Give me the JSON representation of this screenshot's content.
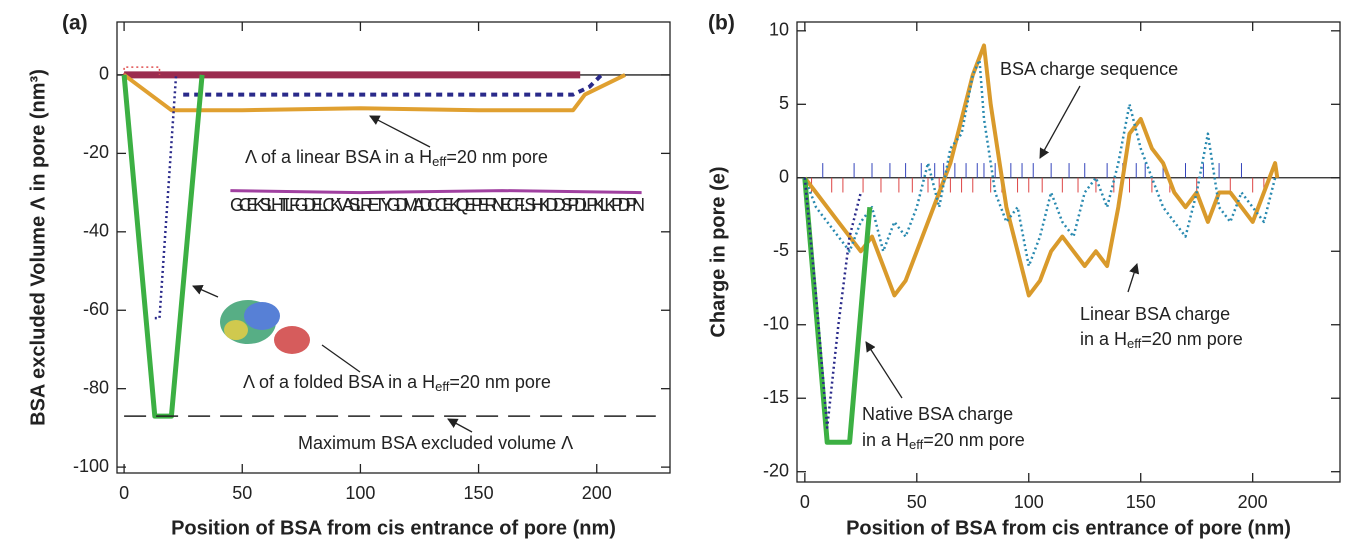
{
  "chart_data": [
    {
      "type": "line",
      "panel_label": "(a)",
      "xlabel": "Position of BSA from cis entrance of pore (nm)",
      "ylabel": "BSA excluded Volume Λ in pore (nm³)",
      "xlim": [
        -3,
        231
      ],
      "ylim": [
        -101.5,
        13.5
      ],
      "xticks": [
        0,
        50,
        100,
        150,
        200
      ],
      "yticks": [
        0,
        -20,
        -40,
        -60,
        -80,
        -100
      ],
      "series": [
        {
          "color": "#9b2c4f",
          "style": "solid",
          "width": 7,
          "x": [
            0,
            193
          ],
          "values": [
            0,
            0
          ]
        },
        {
          "color": "#e05050",
          "style": "dotted",
          "width": 1.5,
          "x": [
            0,
            0,
            15,
            15
          ],
          "values": [
            0,
            2,
            2,
            0
          ]
        },
        {
          "color": "#e0a030",
          "style": "solid",
          "width": 4,
          "x": [
            0,
            20,
            50,
            100,
            150,
            190,
            195,
            212
          ],
          "values": [
            0,
            -9,
            -9,
            -8.5,
            -9,
            -9,
            -5,
            0
          ]
        },
        {
          "color": "#2a2a8a",
          "style": "dotted",
          "width": 2.5,
          "x": [
            13,
            15,
            22
          ],
          "values": [
            -62,
            -62,
            0
          ]
        },
        {
          "color": "#2a2a8a",
          "style": "dashed",
          "width": 4,
          "x": [
            25,
            50,
            100,
            150,
            190,
            197,
            202
          ],
          "values": [
            -5,
            -5,
            -5,
            -5,
            -5,
            -3,
            0
          ]
        },
        {
          "color": "#3cb043",
          "style": "solid",
          "width": 5,
          "x": [
            0,
            13,
            20,
            33
          ],
          "values": [
            0,
            -87,
            -87,
            0
          ]
        },
        {
          "color": "#222222",
          "style": "longdash",
          "width": 1.5,
          "x": [
            0,
            225
          ],
          "values": [
            -87,
            -87
          ]
        },
        {
          "color": "#a040a0",
          "style": "solid",
          "width": 3,
          "x": [
            45,
            100,
            160,
            219
          ],
          "values": [
            -29.5,
            -30,
            -29.5,
            -30
          ]
        }
      ],
      "annotations": [
        {
          "parts": [
            "Λ of a linear BSA in a H",
            "eff",
            "=20 nm pore"
          ]
        },
        {
          "parts": [
            "Λ of a folded BSA in a H",
            "eff",
            "=20 nm pore"
          ]
        },
        {
          "parts": [
            "Maximum BSA excluded volume Λ"
          ]
        }
      ],
      "sequence_text": "GCEKSLHTLFGDELCKVASLRETYGDMADCCEKQEPERNECFLSHKDDSPDLPKLKPDPN"
    },
    {
      "type": "line",
      "panel_label": "(b)",
      "xlabel": "Position of BSA from cis entrance of pore (nm)",
      "ylabel": "Charge in pore (e)",
      "xlim": [
        -3.5,
        239
      ],
      "ylim": [
        -20.7,
        10.6
      ],
      "xticks": [
        0,
        50,
        100,
        150,
        200
      ],
      "yticks": [
        10,
        5,
        0,
        -5,
        -10,
        -15,
        -20
      ],
      "series": [
        {
          "color": "#3344bb",
          "style": "stem",
          "width": 1,
          "x": [
            8,
            22,
            30,
            38,
            45,
            52,
            58,
            62,
            67,
            72,
            77,
            80,
            85,
            92,
            97,
            102,
            110,
            118,
            125,
            135,
            142,
            148,
            152,
            160,
            170,
            178,
            185,
            195
          ],
          "values": [
            1,
            1,
            1,
            1,
            1,
            1,
            1,
            1,
            1,
            1,
            1,
            1,
            1,
            1,
            1,
            1,
            1,
            1,
            1,
            1,
            1,
            1,
            1,
            1,
            1,
            1,
            1,
            1
          ]
        },
        {
          "color": "#dd4444",
          "style": "stem",
          "width": 1,
          "x": [
            3,
            12,
            17,
            26,
            34,
            42,
            48,
            55,
            60,
            65,
            70,
            75,
            83,
            88,
            95,
            100,
            106,
            115,
            122,
            130,
            138,
            145,
            155,
            163,
            175,
            190,
            200,
            205
          ],
          "values": [
            -1,
            -1,
            -1,
            -1,
            -1,
            -1,
            -1,
            -1,
            -1,
            -1,
            -1,
            -1,
            -1,
            -1,
            -1,
            -1,
            -1,
            -1,
            -1,
            -1,
            -1,
            -1,
            -1,
            -1,
            -1,
            -1,
            -1,
            -1
          ]
        },
        {
          "color": "#d99a2b",
          "style": "solid",
          "width": 4,
          "x": [
            0,
            5,
            10,
            15,
            20,
            25,
            30,
            35,
            40,
            45,
            50,
            55,
            60,
            65,
            70,
            75,
            80,
            83,
            87,
            90,
            95,
            100,
            105,
            110,
            115,
            120,
            125,
            130,
            135,
            140,
            145,
            150,
            155,
            160,
            165,
            170,
            175,
            180,
            185,
            190,
            195,
            200,
            205,
            210,
            211
          ],
          "values": [
            0,
            -1,
            -2,
            -3,
            -4,
            -5,
            -4,
            -6,
            -8,
            -7,
            -5,
            -3,
            -1,
            1,
            4,
            7,
            9,
            5,
            1,
            -2,
            -5,
            -8,
            -7,
            -5,
            -4,
            -5,
            -6,
            -5,
            -6,
            -2,
            3,
            4,
            2,
            1,
            -1,
            -2,
            -1,
            -3,
            -1,
            -1,
            -2,
            -3,
            -1,
            1,
            0
          ]
        },
        {
          "color": "#2a8ab0",
          "style": "dotted",
          "width": 2.5,
          "x": [
            0,
            5,
            10,
            15,
            20,
            25,
            30,
            35,
            40,
            45,
            50,
            55,
            60,
            65,
            70,
            75,
            78,
            80,
            85,
            90,
            95,
            100,
            105,
            110,
            115,
            120,
            125,
            130,
            135,
            140,
            145,
            150,
            155,
            160,
            165,
            170,
            175,
            180,
            185,
            190,
            195,
            200,
            205,
            210
          ],
          "values": [
            0,
            -2,
            -3,
            -4,
            -5,
            -3,
            -2,
            -5,
            -3,
            -4,
            -2,
            1,
            -2,
            2,
            3,
            7,
            8,
            4,
            -1,
            -3,
            -2,
            -6,
            -4,
            -1,
            -3,
            -4,
            -1,
            0,
            -2,
            1,
            5,
            2,
            0,
            -2,
            -3,
            -4,
            -1,
            3,
            -2,
            -3,
            -1,
            -2,
            -3,
            0
          ]
        },
        {
          "color": "#3cb043",
          "style": "solid",
          "width": 5,
          "x": [
            0,
            10,
            20,
            29
          ],
          "values": [
            0,
            -18,
            -18,
            -2
          ]
        },
        {
          "color": "#2a2a8a",
          "style": "dotted",
          "width": 2.5,
          "x": [
            0,
            5,
            10,
            15,
            20,
            25
          ],
          "values": [
            0,
            -8,
            -17,
            -10,
            -4,
            -1
          ]
        }
      ],
      "annotations": [
        {
          "parts": [
            "BSA charge sequence"
          ]
        },
        {
          "parts": [
            "Linear BSA charge"
          ]
        },
        {
          "parts": [
            "in a H",
            "eff",
            "=20 nm pore"
          ]
        },
        {
          "parts": [
            "Native BSA charge"
          ]
        },
        {
          "parts": [
            "in a H",
            "eff",
            "=20 nm pore"
          ]
        }
      ]
    }
  ]
}
